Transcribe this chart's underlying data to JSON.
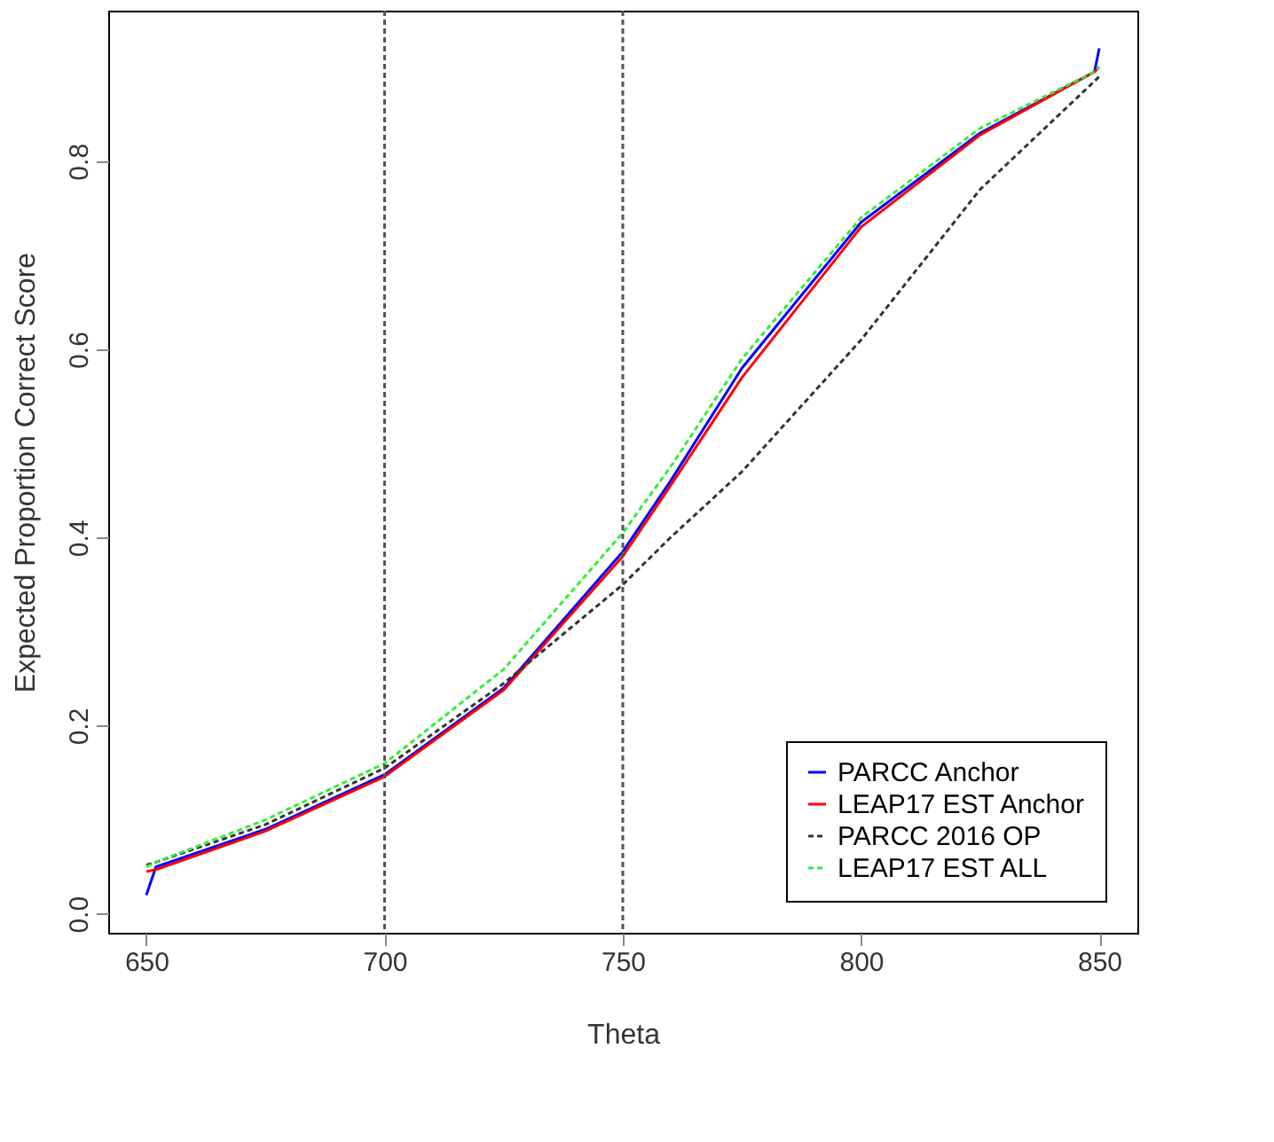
{
  "chart_data": {
    "type": "line",
    "xlabel": "Theta",
    "ylabel": "Expected Proportion Correct Score",
    "xlim": [
      642,
      858
    ],
    "ylim": [
      -0.02,
      0.96
    ],
    "xticks": [
      650,
      700,
      750,
      800,
      850
    ],
    "yticks": [
      {
        "value": 0,
        "label": "0.0"
      },
      0.2,
      0.4,
      0.6,
      0.8
    ],
    "grid": false,
    "legend": "bottom right",
    "marker": "none",
    "x": [
      650,
      652,
      675,
      700,
      725,
      750,
      760,
      775,
      800,
      825,
      849,
      850
    ],
    "series": [
      {
        "name": "PARCC Anchor",
        "color": "#0000ff",
        "line_style": "solid",
        "values": [
          0.02,
          0.05,
          0.09,
          0.148,
          0.24,
          0.385,
          0.46,
          0.58,
          0.735,
          0.83,
          0.895,
          0.92
        ]
      },
      {
        "name": "LEAP17 EST Anchor",
        "color": "#ff0000",
        "line_style": "solid",
        "values": [
          0.045,
          0.047,
          0.088,
          0.146,
          0.238,
          0.38,
          0.455,
          0.57,
          0.73,
          0.828,
          0.895,
          0.9
        ]
      },
      {
        "name": "PARCC 2016 OP",
        "color": "#333333",
        "line_style": "dashed",
        "values": [
          0.052,
          0.055,
          0.095,
          0.155,
          0.245,
          0.35,
          0.4,
          0.47,
          0.61,
          0.77,
          0.885,
          0.89
        ]
      },
      {
        "name": "LEAP17 EST ALL",
        "color": "#33ee33",
        "line_style": "dashed",
        "values": [
          0.05,
          0.055,
          0.1,
          0.16,
          0.26,
          0.405,
          0.475,
          0.59,
          0.74,
          0.835,
          0.895,
          0.9
        ]
      }
    ],
    "ref_lines": [
      {
        "axis": "x",
        "value": 700,
        "color": "#555555",
        "line_style": "dashed"
      },
      {
        "axis": "x",
        "value": 750,
        "color": "#555555",
        "line_style": "dashed"
      }
    ]
  }
}
